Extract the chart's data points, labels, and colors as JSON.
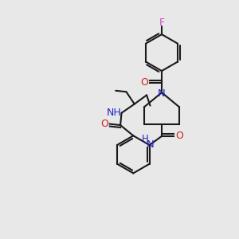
{
  "background_color": "#e8e8e8",
  "bond_color": "#1a1a1a",
  "N_color": "#2222cc",
  "O_color": "#cc2222",
  "F_color": "#cc44cc",
  "figsize": [
    3.0,
    3.0
  ],
  "dpi": 100,
  "xlim": [
    0,
    10
  ],
  "ylim": [
    0,
    10
  ],
  "lw": 1.5
}
